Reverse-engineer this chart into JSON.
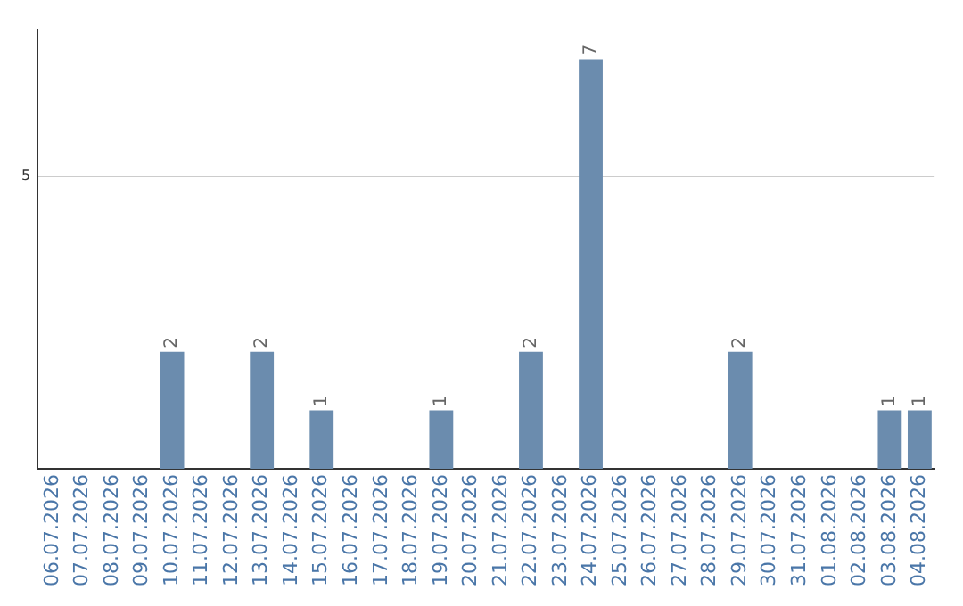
{
  "chart_data": {
    "type": "bar",
    "categories": [
      "06.07.2026",
      "07.07.2026",
      "08.07.2026",
      "09.07.2026",
      "10.07.2026",
      "11.07.2026",
      "12.07.2026",
      "13.07.2026",
      "14.07.2026",
      "15.07.2026",
      "16.07.2026",
      "17.07.2026",
      "18.07.2026",
      "19.07.2026",
      "20.07.2026",
      "21.07.2026",
      "22.07.2026",
      "23.07.2026",
      "24.07.2026",
      "25.07.2026",
      "26.07.2026",
      "27.07.2026",
      "28.07.2026",
      "29.07.2026",
      "30.07.2026",
      "31.07.2026",
      "01.08.2026",
      "02.08.2026",
      "03.08.2026",
      "04.08.2026"
    ],
    "values": [
      0,
      0,
      0,
      0,
      2,
      0,
      0,
      2,
      0,
      1,
      0,
      0,
      0,
      1,
      0,
      0,
      2,
      0,
      7,
      0,
      0,
      0,
      0,
      2,
      0,
      0,
      0,
      0,
      1,
      1
    ],
    "value_labels": [
      null,
      null,
      null,
      null,
      "2",
      null,
      null,
      "2",
      null,
      "1",
      null,
      null,
      null,
      "1",
      null,
      null,
      "2",
      null,
      "7",
      null,
      null,
      null,
      null,
      "2",
      null,
      null,
      null,
      null,
      "1",
      "1"
    ],
    "color": "#6b8cae",
    "ylim": [
      0,
      7.5
    ],
    "yticks": [
      5
    ],
    "grid": "y",
    "legend": false
  }
}
